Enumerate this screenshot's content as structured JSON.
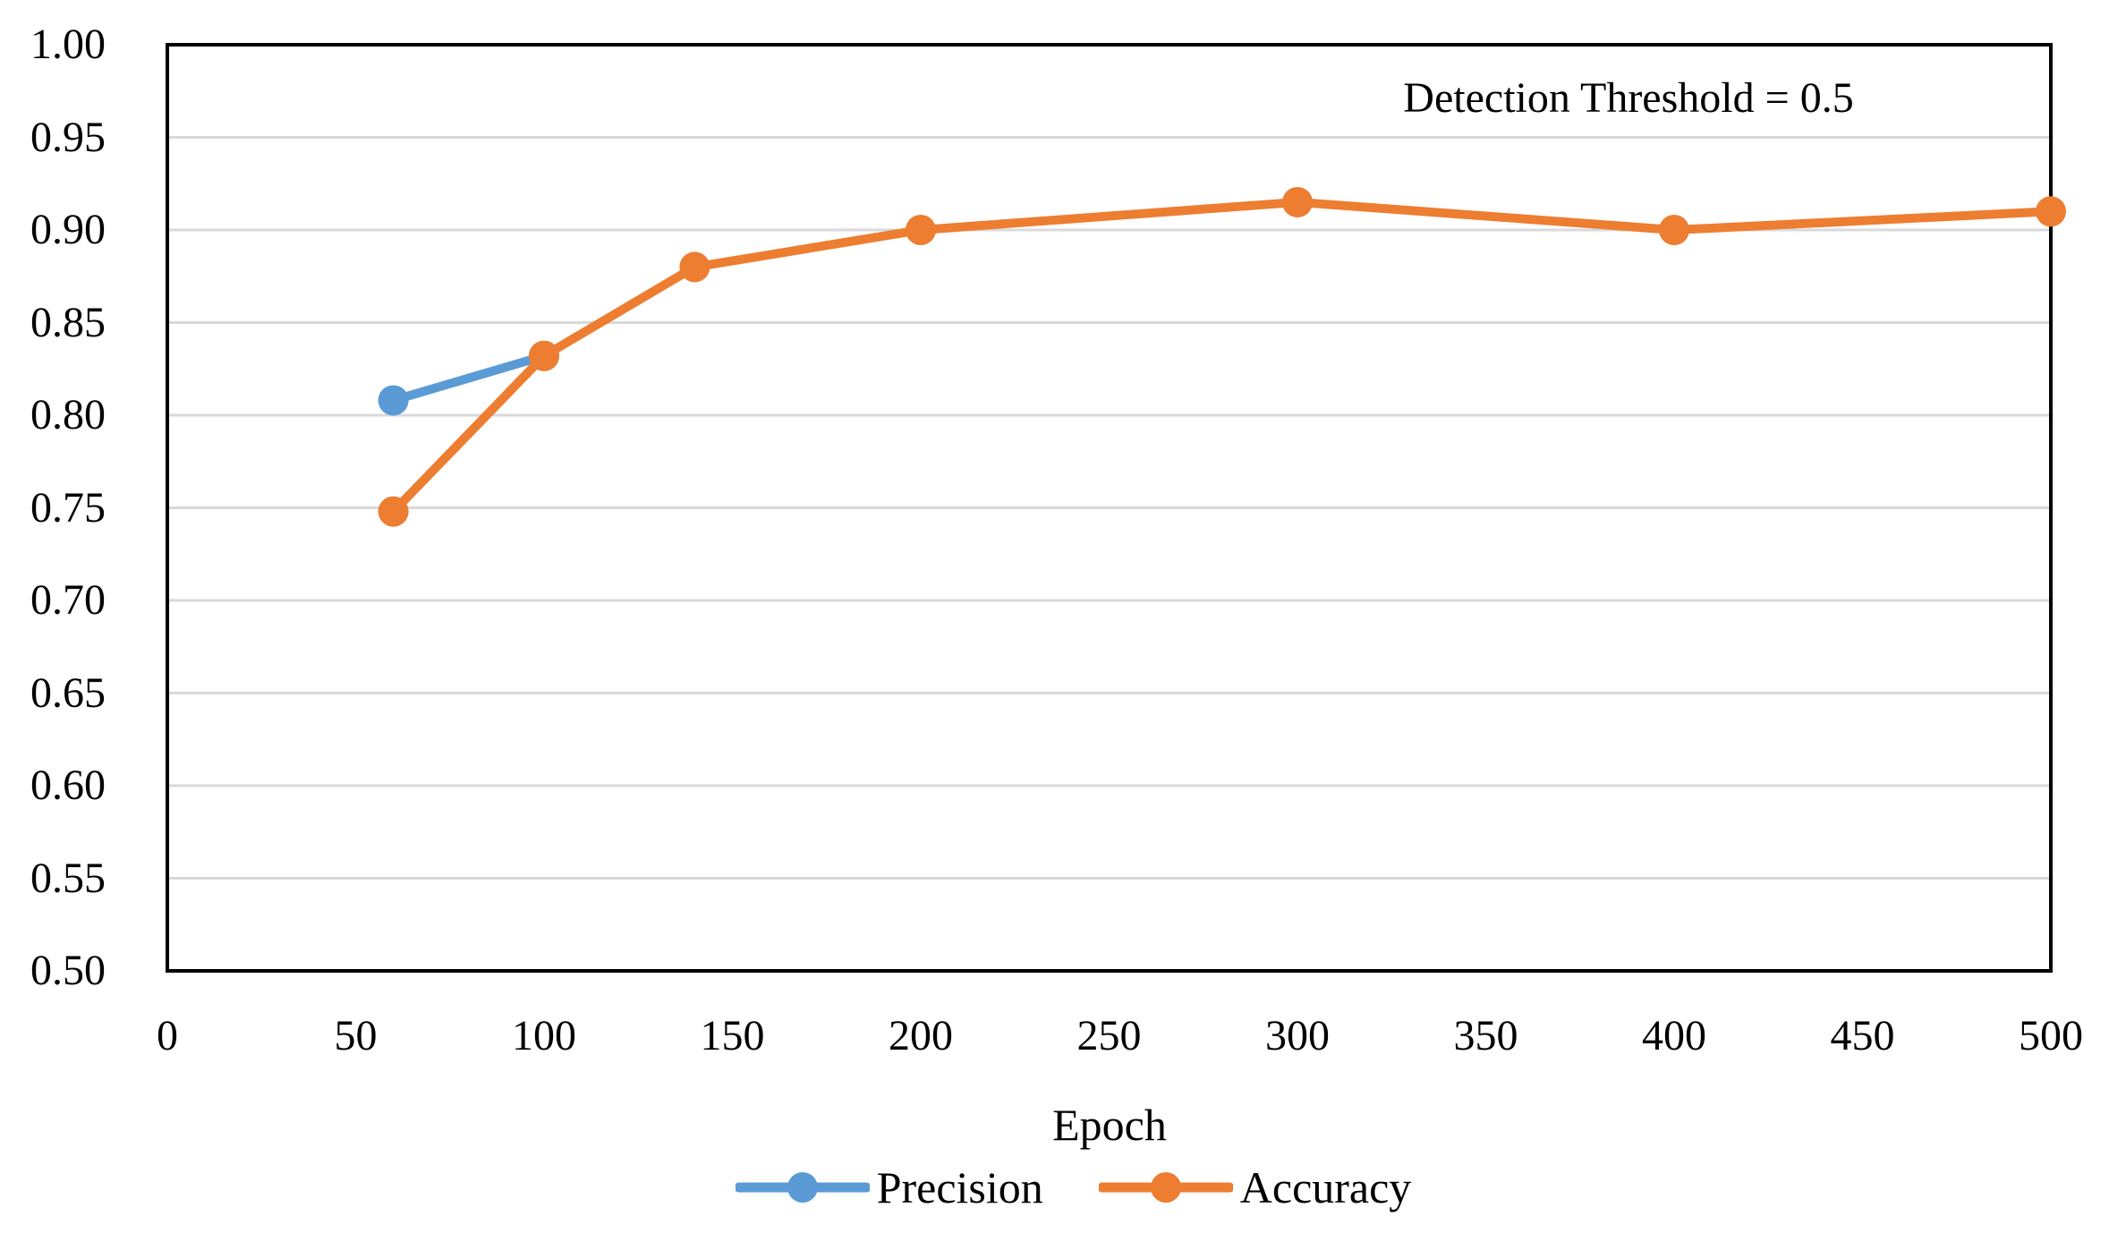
{
  "chart_data": {
    "type": "line",
    "title": "",
    "xlabel": "Epoch",
    "ylabel": "",
    "annotation": "Detection Threshold = 0.5",
    "xlim": [
      0,
      500
    ],
    "ylim": [
      0.5,
      1.0
    ],
    "x_ticks": [
      0,
      50,
      100,
      150,
      200,
      250,
      300,
      350,
      400,
      450,
      500
    ],
    "y_ticks": [
      "1.00",
      "0.95",
      "0.90",
      "0.85",
      "0.80",
      "0.75",
      "0.70",
      "0.65",
      "0.60",
      "0.55",
      "0.50"
    ],
    "grid": "horizontal-only",
    "legend_position": "bottom-center",
    "series": [
      {
        "name": "Precision",
        "color": "#5B9BD5",
        "x": [
          60,
          100
        ],
        "y": [
          0.808,
          0.832
        ]
      },
      {
        "name": "Accuracy",
        "color": "#ED7D31",
        "x": [
          60,
          100,
          140,
          200,
          300,
          400,
          500
        ],
        "y": [
          0.748,
          0.832,
          0.88,
          0.9,
          0.915,
          0.9,
          0.91
        ]
      }
    ],
    "colors": {
      "gridline": "#D9D9D9",
      "axis_border": "#000000",
      "text": "#000000",
      "background": "#FFFFFF"
    }
  }
}
